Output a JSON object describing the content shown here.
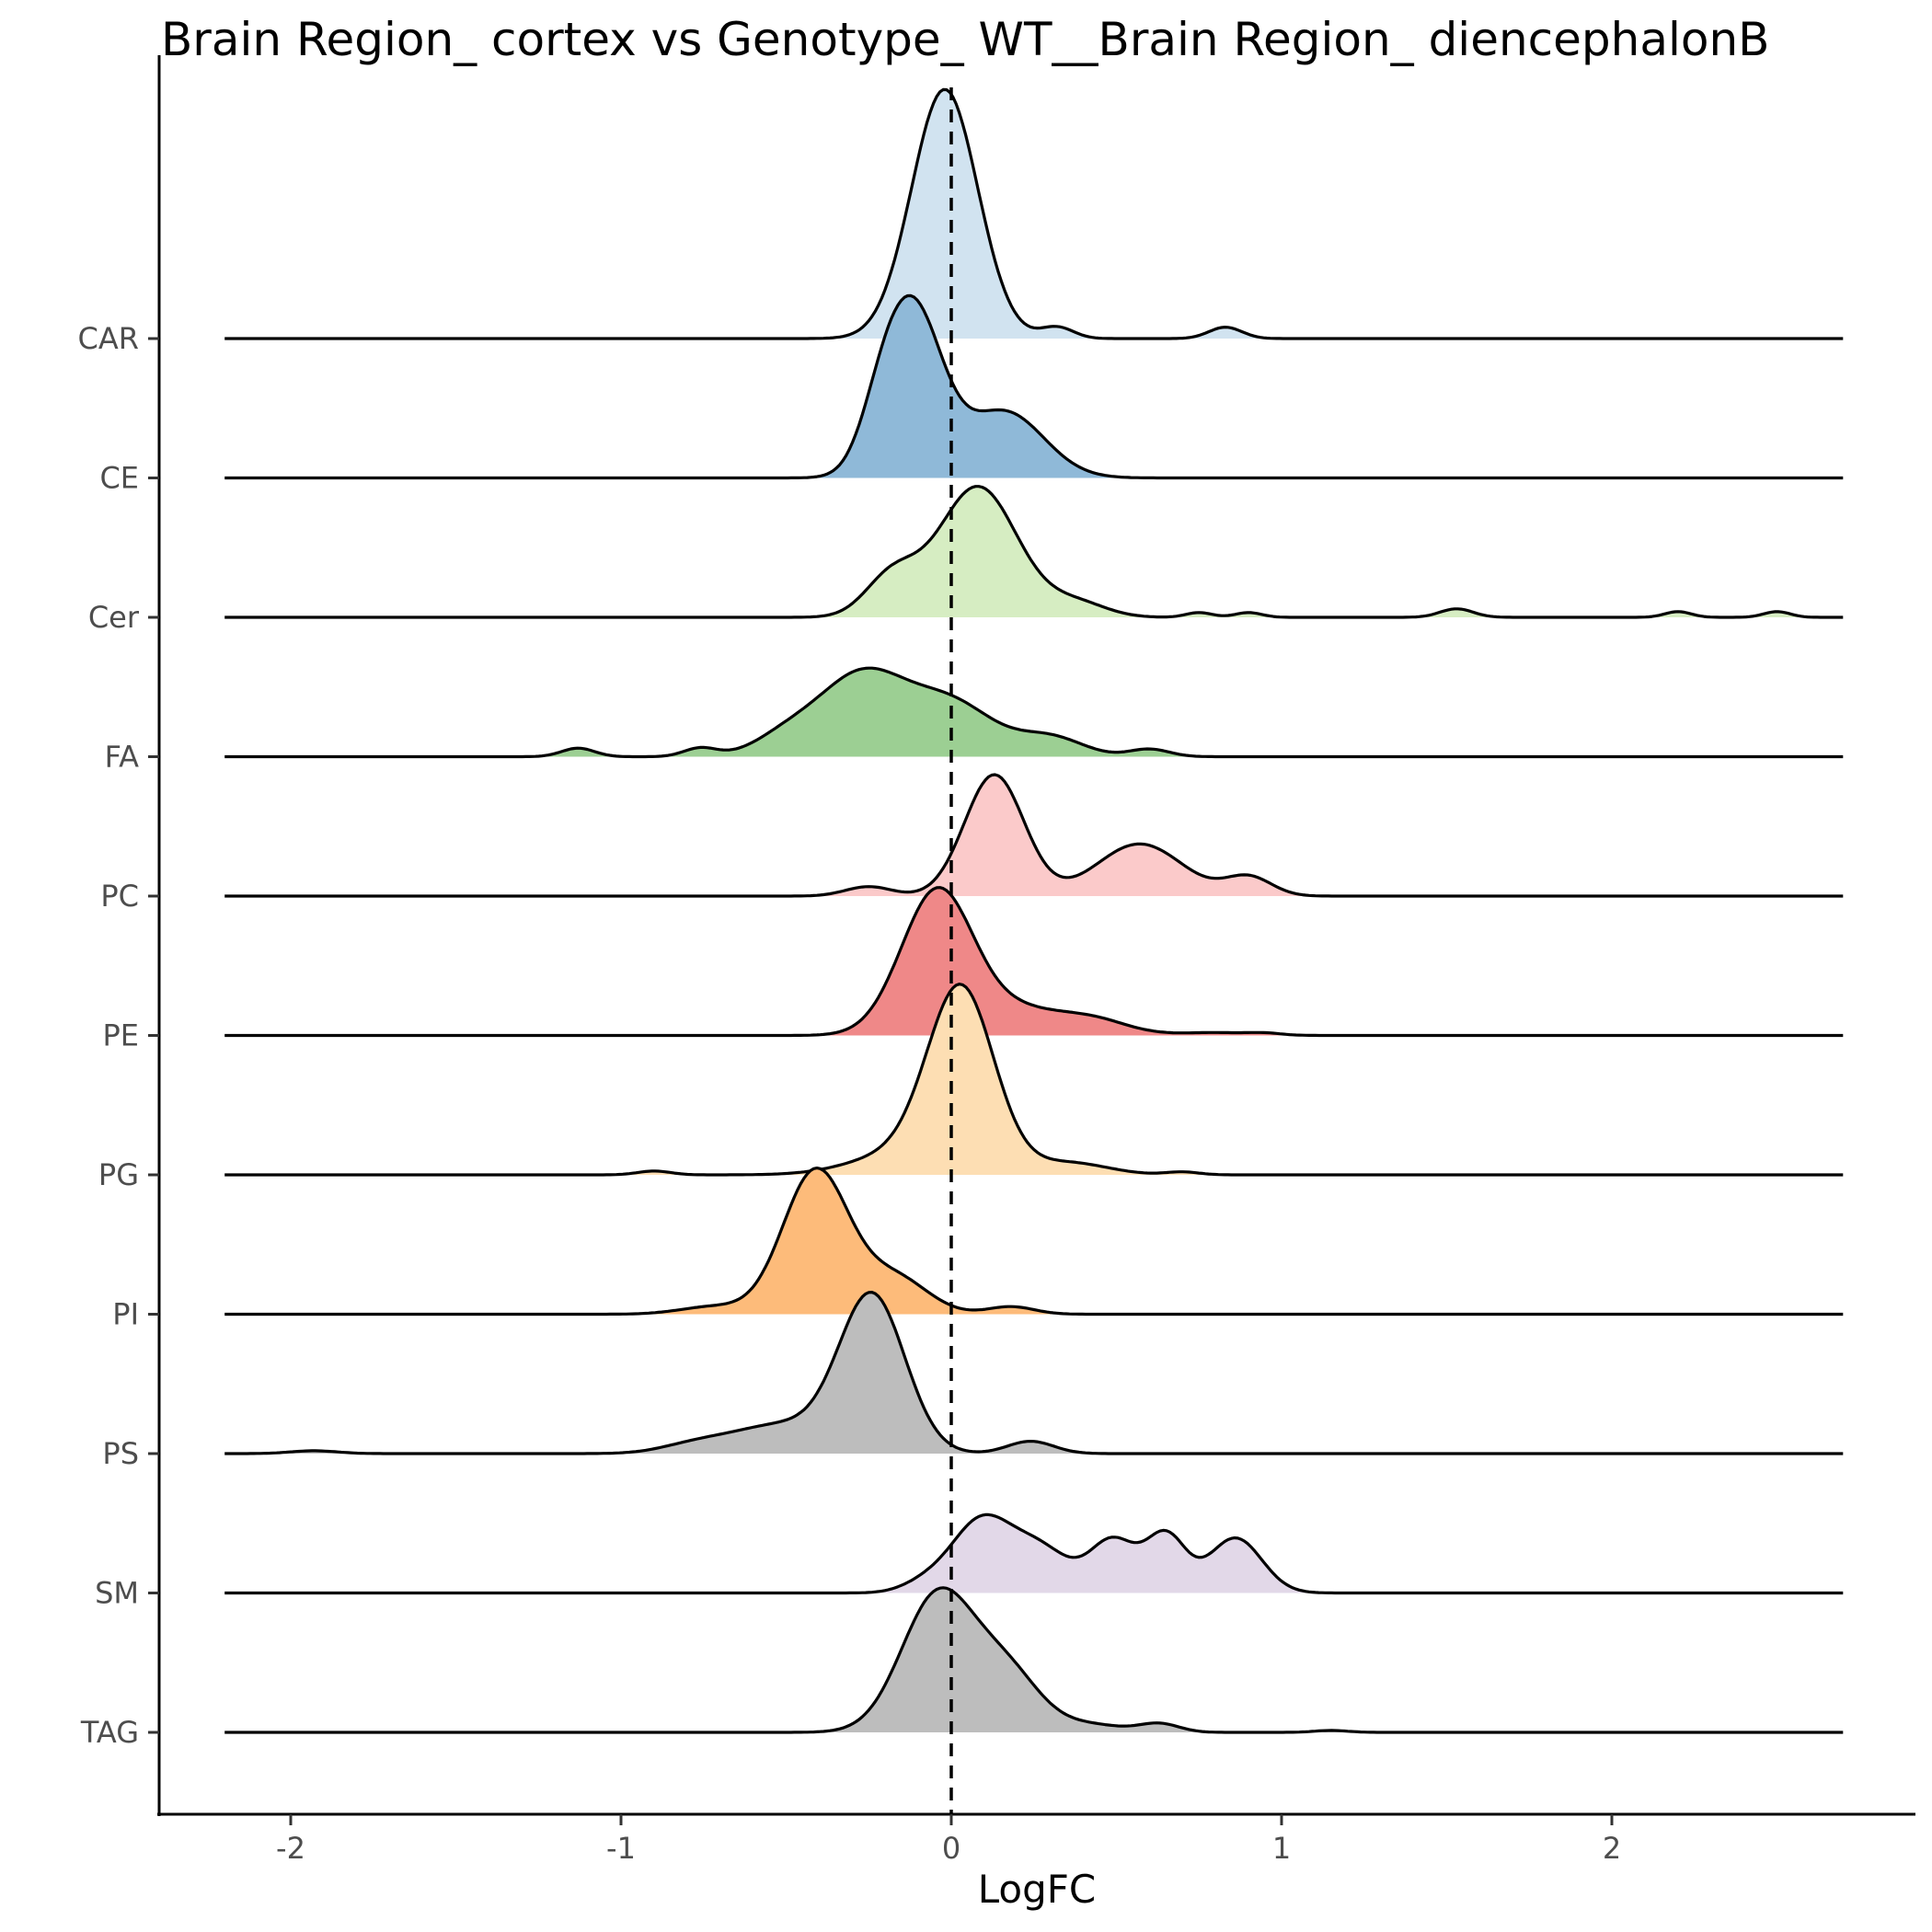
{
  "chart_data": {
    "type": "ridgeline",
    "title": "Brain Region_ cortex vs Genotype_ WT__Brain Region_ diencephalonB",
    "xlabel": "LogFC",
    "ylabel": "",
    "xlim": [
      -2.4,
      2.9
    ],
    "x_ticks": [
      {
        "value": -2,
        "label": "-2"
      },
      {
        "value": -1,
        "label": "-1"
      },
      {
        "value": 0,
        "label": "0"
      },
      {
        "value": 1,
        "label": "1"
      },
      {
        "value": 2,
        "label": "2"
      }
    ],
    "reference_line": {
      "x": 0,
      "style": "dashed"
    },
    "density_range": [
      -2.2,
      2.7
    ],
    "series": [
      {
        "name": "CAR",
        "color": "#d1e3f0",
        "peaks": [
          {
            "mu": -0.02,
            "sigma": 0.1,
            "h": 2.63
          },
          {
            "mu": 0.32,
            "sigma": 0.05,
            "h": 0.12
          },
          {
            "mu": 0.83,
            "sigma": 0.05,
            "h": 0.12
          }
        ]
      },
      {
        "name": "CE",
        "color": "#8fb9d8",
        "peaks": [
          {
            "mu": -0.12,
            "sigma": 0.09,
            "h": 1.8
          },
          {
            "mu": 0.16,
            "sigma": 0.12,
            "h": 0.7
          },
          {
            "mu": -0.22,
            "sigma": 0.06,
            "h": 0.3
          }
        ]
      },
      {
        "name": "Cer",
        "color": "#d6edc2",
        "peaks": [
          {
            "mu": 0.08,
            "sigma": 0.12,
            "h": 1.38
          },
          {
            "mu": -0.18,
            "sigma": 0.08,
            "h": 0.42
          },
          {
            "mu": 0.38,
            "sigma": 0.09,
            "h": 0.15
          },
          {
            "mu": 0.75,
            "sigma": 0.04,
            "h": 0.05
          },
          {
            "mu": 0.9,
            "sigma": 0.04,
            "h": 0.05
          },
          {
            "mu": 1.53,
            "sigma": 0.05,
            "h": 0.09
          },
          {
            "mu": 2.2,
            "sigma": 0.04,
            "h": 0.06
          },
          {
            "mu": 2.5,
            "sigma": 0.04,
            "h": 0.06
          }
        ]
      },
      {
        "name": "FA",
        "color": "#9ccf93",
        "peaks": [
          {
            "mu": -0.27,
            "sigma": 0.13,
            "h": 0.85
          },
          {
            "mu": 0.0,
            "sigma": 0.13,
            "h": 0.55
          },
          {
            "mu": -0.5,
            "sigma": 0.1,
            "h": 0.2
          },
          {
            "mu": 0.3,
            "sigma": 0.1,
            "h": 0.2
          },
          {
            "mu": 0.6,
            "sigma": 0.06,
            "h": 0.08
          },
          {
            "mu": -1.13,
            "sigma": 0.05,
            "h": 0.09
          },
          {
            "mu": -0.76,
            "sigma": 0.05,
            "h": 0.09
          }
        ]
      },
      {
        "name": "PC",
        "color": "#fbcaca",
        "peaks": [
          {
            "mu": 0.13,
            "sigma": 0.09,
            "h": 1.28
          },
          {
            "mu": 0.57,
            "sigma": 0.13,
            "h": 0.55
          },
          {
            "mu": 0.9,
            "sigma": 0.07,
            "h": 0.2
          },
          {
            "mu": -0.25,
            "sigma": 0.07,
            "h": 0.1
          }
        ]
      },
      {
        "name": "PE",
        "color": "#ef8888",
        "peaks": [
          {
            "mu": -0.04,
            "sigma": 0.11,
            "h": 1.55
          },
          {
            "mu": 0.4,
            "sigma": 0.12,
            "h": 0.2
          },
          {
            "mu": 0.2,
            "sigma": 0.1,
            "h": 0.2
          },
          {
            "mu": 0.8,
            "sigma": 0.1,
            "h": 0.03
          },
          {
            "mu": 0.95,
            "sigma": 0.05,
            "h": 0.02
          }
        ]
      },
      {
        "name": "PG",
        "color": "#fddeb3",
        "peaks": [
          {
            "mu": 0.03,
            "sigma": 0.1,
            "h": 1.9
          },
          {
            "mu": -0.15,
            "sigma": 0.15,
            "h": 0.22
          },
          {
            "mu": 0.35,
            "sigma": 0.12,
            "h": 0.13
          },
          {
            "mu": -0.9,
            "sigma": 0.05,
            "h": 0.04
          },
          {
            "mu": 0.7,
            "sigma": 0.05,
            "h": 0.03
          }
        ]
      },
      {
        "name": "PI",
        "color": "#fdbb7a",
        "peaks": [
          {
            "mu": -0.41,
            "sigma": 0.1,
            "h": 1.52
          },
          {
            "mu": -0.17,
            "sigma": 0.1,
            "h": 0.38
          },
          {
            "mu": -0.72,
            "sigma": 0.1,
            "h": 0.08
          },
          {
            "mu": 0.18,
            "sigma": 0.07,
            "h": 0.08
          }
        ]
      },
      {
        "name": "PS",
        "color": "#bdbdbd",
        "peaks": [
          {
            "mu": -0.24,
            "sigma": 0.1,
            "h": 1.65
          },
          {
            "mu": -0.52,
            "sigma": 0.15,
            "h": 0.3
          },
          {
            "mu": -0.78,
            "sigma": 0.1,
            "h": 0.08
          },
          {
            "mu": 0.24,
            "sigma": 0.07,
            "h": 0.13
          },
          {
            "mu": -1.93,
            "sigma": 0.07,
            "h": 0.03
          }
        ]
      },
      {
        "name": "SM",
        "color": "#e2d8e8",
        "peaks": [
          {
            "mu": 0.09,
            "sigma": 0.09,
            "h": 0.75
          },
          {
            "mu": 0.27,
            "sigma": 0.09,
            "h": 0.45
          },
          {
            "mu": 0.49,
            "sigma": 0.07,
            "h": 0.55
          },
          {
            "mu": 0.65,
            "sigma": 0.06,
            "h": 0.6
          },
          {
            "mu": 0.86,
            "sigma": 0.08,
            "h": 0.58
          },
          {
            "mu": -0.08,
            "sigma": 0.07,
            "h": 0.1
          }
        ]
      },
      {
        "name": "TAG",
        "color": "#bdbdbd",
        "peaks": [
          {
            "mu": -0.04,
            "sigma": 0.11,
            "h": 1.45
          },
          {
            "mu": 0.17,
            "sigma": 0.1,
            "h": 0.6
          },
          {
            "mu": 0.42,
            "sigma": 0.1,
            "h": 0.08
          },
          {
            "mu": 0.63,
            "sigma": 0.06,
            "h": 0.09
          },
          {
            "mu": 1.15,
            "sigma": 0.05,
            "h": 0.02
          }
        ]
      }
    ]
  }
}
